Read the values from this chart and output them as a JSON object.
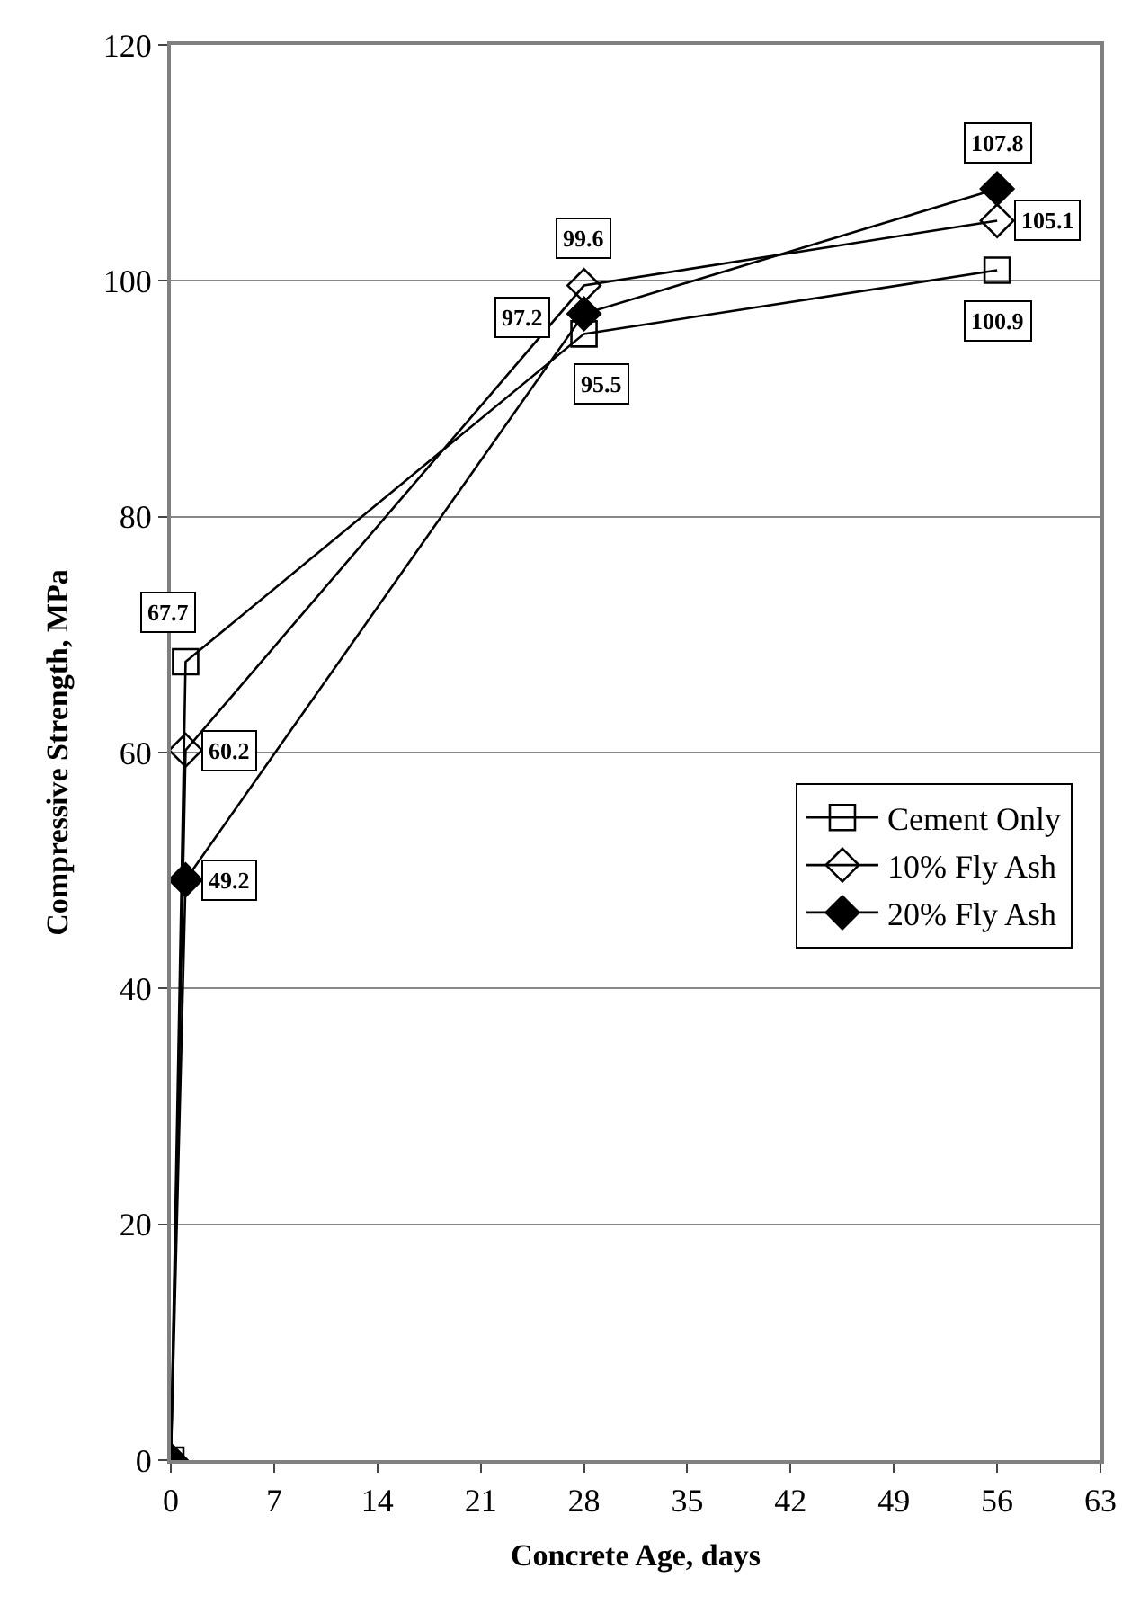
{
  "chart_data": {
    "type": "line",
    "xlabel": "Concrete Age, days",
    "ylabel": "Compressive Strength, MPa",
    "x": [
      0,
      1,
      28,
      56
    ],
    "series": [
      {
        "name": "Cement Only",
        "color": "#000000",
        "marker": "square",
        "values": [
          0,
          67.7,
          95.5,
          100.9
        ],
        "value_labels": [
          null,
          "67.7",
          "95.5",
          "100.9"
        ]
      },
      {
        "name": "10% Fly Ash",
        "color": "#000000",
        "marker": "diamond",
        "values": [
          0,
          60.2,
          99.6,
          105.1
        ],
        "value_labels": [
          null,
          "60.2",
          "99.6",
          "105.1"
        ]
      },
      {
        "name": "20% Fly Ash",
        "color": "#000000",
        "marker": "diamond",
        "values": [
          0,
          49.2,
          97.2,
          107.8
        ],
        "value_labels": [
          null,
          "49.2",
          "97.2",
          "107.8"
        ]
      }
    ],
    "xlim": [
      0,
      63
    ],
    "xticks": [
      0,
      7,
      14,
      21,
      28,
      35,
      42,
      49,
      56,
      63
    ],
    "ylim": [
      0,
      120
    ],
    "yticks": [
      0,
      20,
      40,
      60,
      80,
      100,
      120
    ],
    "grid": "y",
    "legend": "right",
    "line_style": "solid"
  }
}
